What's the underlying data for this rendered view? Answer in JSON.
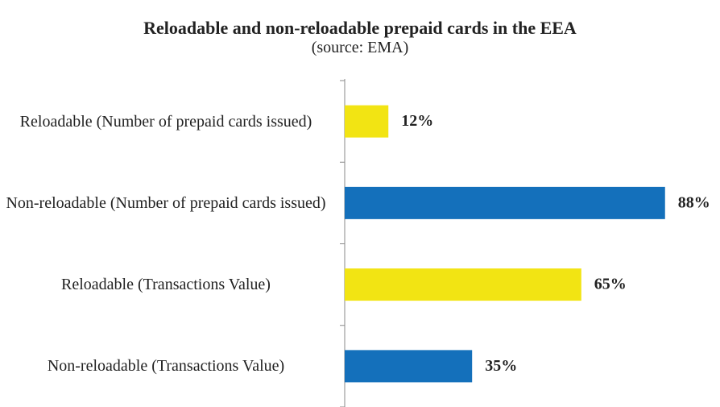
{
  "chart_data": {
    "type": "hbar",
    "title": "Reloadable and non-reloadable prepaid cards in the EEA",
    "subtitle": "(source: EMA)",
    "categories": [
      "Reloadable (Number of prepaid cards issued)",
      "Non-reloadable (Number of prepaid cards issued)",
      "Reloadable (Transactions Value)",
      "Non-reloadable (Transactions Value)"
    ],
    "values": [
      12,
      88,
      65,
      35
    ],
    "value_labels": [
      "12%",
      "88%",
      "65%",
      "35%"
    ],
    "colors": [
      "#f2e413",
      "#1470bb",
      "#f2e413",
      "#1470bb"
    ]
  }
}
